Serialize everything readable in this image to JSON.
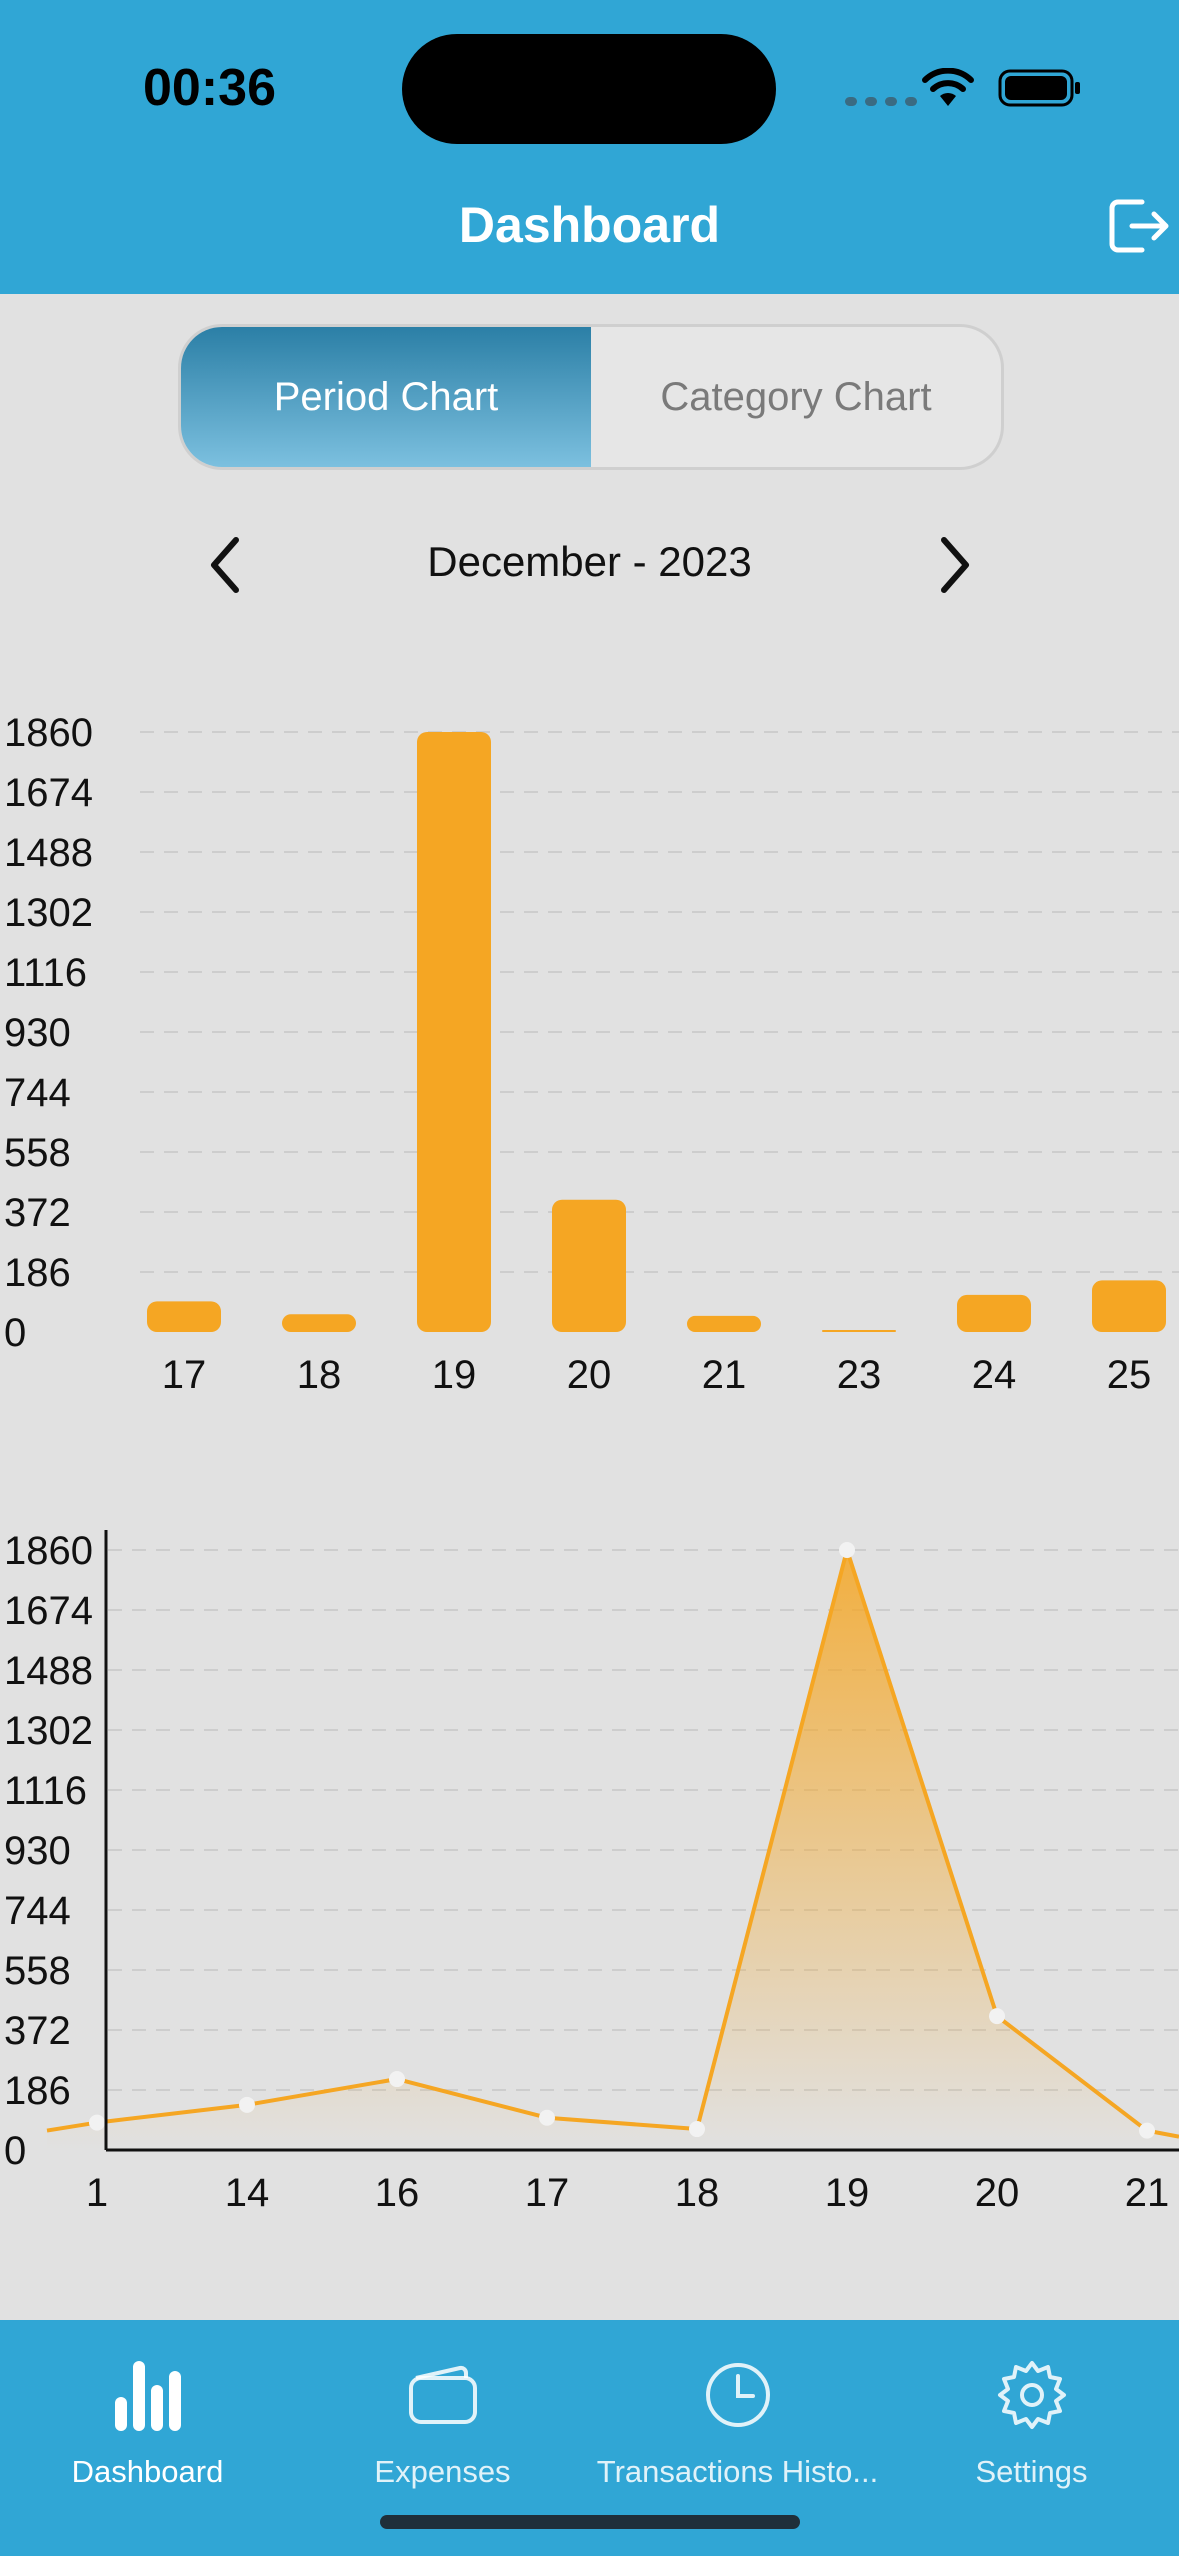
{
  "status_bar": {
    "time": "00:36"
  },
  "header": {
    "title": "Dashboard",
    "logout_icon": "logout-icon"
  },
  "segments": [
    {
      "label": "Period Chart",
      "active": true
    },
    {
      "label": "Category Chart",
      "active": false
    }
  ],
  "period": {
    "label": "December - 2023"
  },
  "colors": {
    "accent": "#f5a623",
    "header": "#30a6d5"
  },
  "chart_data": [
    {
      "type": "bar",
      "categories": [
        "17",
        "18",
        "19",
        "20",
        "21",
        "23",
        "24",
        "25"
      ],
      "values": [
        95,
        55,
        1860,
        410,
        50,
        5,
        115,
        160
      ],
      "yticks": [
        0,
        186,
        372,
        558,
        744,
        930,
        1116,
        1302,
        1488,
        1674,
        1860
      ],
      "ylim": [
        0,
        1860
      ],
      "grid": true
    },
    {
      "type": "area",
      "categories": [
        "1",
        "14",
        "16",
        "17",
        "18",
        "19",
        "20",
        "21"
      ],
      "values": [
        85,
        140,
        220,
        100,
        65,
        1860,
        415,
        60
      ],
      "yticks": [
        0,
        186,
        372,
        558,
        744,
        930,
        1116,
        1302,
        1488,
        1674,
        1860
      ],
      "ylim": [
        0,
        1860
      ],
      "grid": true
    }
  ],
  "tabbar": [
    {
      "label": "Dashboard",
      "icon": "bar-chart-icon",
      "active": true
    },
    {
      "label": "Expenses",
      "icon": "wallet-icon",
      "active": false
    },
    {
      "label": "Transactions Histo...",
      "icon": "clock-icon",
      "active": false
    },
    {
      "label": "Settings",
      "icon": "gear-icon",
      "active": false
    }
  ]
}
